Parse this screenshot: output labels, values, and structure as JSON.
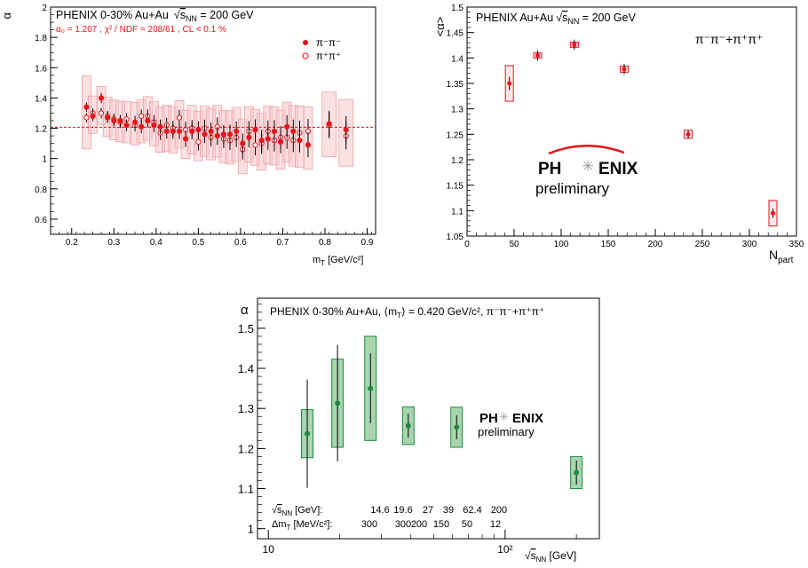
{
  "colors": {
    "red": "#e8141c",
    "green": "#1e8a3e",
    "green_fill": "#a8d5b0",
    "red_fill": "#f7c9cb"
  },
  "chart_data": [
    {
      "type": "scatter",
      "title": "PHENIX 0-30%  Au+Au",
      "sqrt_label": "s",
      "sqrt_sub": "NN",
      "energy_text": " = 200 GeV",
      "fit_text": "α₀ = 1.207  ,  χ² / NDF = 208/61 , CL < 0.1 %",
      "ylabel": "α",
      "xlabel": "m",
      "xlabel_sub": "T",
      "xlabel_unit": " [GeV/c²]",
      "xlim": [
        0.15,
        0.92
      ],
      "ylim": [
        0.5,
        2.0
      ],
      "x_ticks": [
        "0.2",
        "0.3",
        "0.4",
        "0.5",
        "0.6",
        "0.7",
        "0.8",
        "0.9"
      ],
      "y_ticks": [
        "0.6",
        "0.8",
        "1",
        "1.2",
        "1.4",
        "1.6",
        "1.8",
        "2"
      ],
      "fit_value": 1.207,
      "legend": [
        {
          "label": "π⁻π⁻",
          "marker": "filled"
        },
        {
          "label": "π⁺π⁺",
          "marker": "open"
        }
      ],
      "series": [
        {
          "name": "π⁻π⁻",
          "marker": "filled",
          "x": [
            0.235,
            0.25,
            0.27,
            0.285,
            0.3,
            0.315,
            0.33,
            0.35,
            0.365,
            0.38,
            0.395,
            0.41,
            0.425,
            0.44,
            0.455,
            0.47,
            0.485,
            0.5,
            0.515,
            0.53,
            0.545,
            0.56,
            0.575,
            0.59,
            0.605,
            0.62,
            0.635,
            0.65,
            0.665,
            0.68,
            0.695,
            0.71,
            0.725,
            0.74,
            0.76,
            0.81,
            0.85
          ],
          "y": [
            1.34,
            1.28,
            1.4,
            1.27,
            1.25,
            1.25,
            1.22,
            1.24,
            1.21,
            1.25,
            1.22,
            1.21,
            1.18,
            1.18,
            1.18,
            1.13,
            1.18,
            1.19,
            1.16,
            1.18,
            1.15,
            1.16,
            1.16,
            1.18,
            1.1,
            1.14,
            1.19,
            1.12,
            1.13,
            1.18,
            1.11,
            1.21,
            1.18,
            1.12,
            1.09,
            1.23,
            1.19
          ]
        },
        {
          "name": "π⁺π⁺",
          "marker": "open",
          "x": [
            0.235,
            0.25,
            0.27,
            0.285,
            0.3,
            0.315,
            0.33,
            0.35,
            0.365,
            0.38,
            0.395,
            0.41,
            0.425,
            0.44,
            0.455,
            0.47,
            0.485,
            0.5,
            0.515,
            0.53,
            0.545,
            0.56,
            0.575,
            0.59,
            0.605,
            0.62,
            0.635,
            0.65,
            0.665,
            0.68,
            0.695,
            0.71,
            0.725,
            0.74,
            0.76,
            0.81,
            0.85
          ],
          "y": [
            1.27,
            1.3,
            1.3,
            1.28,
            1.26,
            1.24,
            1.26,
            1.22,
            1.28,
            1.28,
            1.24,
            1.17,
            1.22,
            1.2,
            1.27,
            1.19,
            1.2,
            1.11,
            1.2,
            1.14,
            1.21,
            1.13,
            1.12,
            1.14,
            1.06,
            1.18,
            1.09,
            1.1,
            1.18,
            1.12,
            1.14,
            1.14,
            1.12,
            1.17,
            1.18,
            1.22,
            1.15
          ]
        }
      ]
    },
    {
      "type": "scatter",
      "title": "PHENIX Au+Au",
      "sqrt_label": "s",
      "sqrt_sub": "NN",
      "energy_text": " = 200 GeV",
      "series_label": "π⁻π⁻+π⁺π⁺",
      "ylabel": "<α>",
      "xlabel": "N",
      "xlabel_sub": "part",
      "xlim": [
        0,
        350
      ],
      "ylim": [
        1.05,
        1.5
      ],
      "x_ticks": [
        "0",
        "50",
        "100",
        "150",
        "200",
        "250",
        "300",
        "350"
      ],
      "y_ticks": [
        "1.05",
        "1.1",
        "1.15",
        "1.2",
        "1.25",
        "1.3",
        "1.35",
        "1.4",
        "1.45",
        "1.5"
      ],
      "logo": {
        "left": "PH",
        "right": "ENIX",
        "sub": "preliminary"
      },
      "points": [
        {
          "x": 45,
          "y": 1.35,
          "stat": 0.013,
          "sys": 0.035
        },
        {
          "x": 75,
          "y": 1.405,
          "stat": 0.01,
          "sys": 0.005
        },
        {
          "x": 114,
          "y": 1.426,
          "stat": 0.01,
          "sys": 0.005
        },
        {
          "x": 167,
          "y": 1.378,
          "stat": 0.01,
          "sys": 0.006
        },
        {
          "x": 235,
          "y": 1.25,
          "stat": 0.008,
          "sys": 0.008
        },
        {
          "x": 325,
          "y": 1.095,
          "stat": 0.009,
          "sys": 0.025
        }
      ]
    },
    {
      "type": "scatter",
      "title": "PHENIX 0-30% Au+Au, ⟨m",
      "title_sub": "T",
      "title_rest": "⟩ = 0.420 GeV/c², π⁻π⁻+π⁺π⁺",
      "ylabel": "α",
      "xlabel": "s",
      "xlabel_sub": "NN",
      "xlabel_unit": " [GeV]",
      "xscale": "log",
      "xlim": [
        9,
        250
      ],
      "ylim": [
        0.975,
        1.575
      ],
      "x_ticks": [
        "10",
        "10²"
      ],
      "y_ticks": [
        "1",
        "1.1",
        "1.2",
        "1.3",
        "1.4",
        "1.5"
      ],
      "logo": {
        "left": "PH",
        "right": "ENIX",
        "sub": "preliminary"
      },
      "table": {
        "row1_label": "s",
        "row1_sub": "NN",
        "row1_unit": " [GeV]:",
        "row1_values": [
          "14.6",
          "19.6",
          "27",
          "39",
          "62.4",
          "200"
        ],
        "row2_label": "Δm",
        "row2_sub": "T",
        "row2_unit": " [MeV/c²]:",
        "row2_values": [
          "300",
          "300",
          "200",
          "150",
          "50",
          "12"
        ]
      },
      "points": [
        {
          "x": 14.6,
          "y": 1.237,
          "stat": 0.135,
          "sys": 0.06
        },
        {
          "x": 19.6,
          "y": 1.313,
          "stat": 0.145,
          "sys": 0.11
        },
        {
          "x": 27,
          "y": 1.35,
          "stat": 0.087,
          "sys": 0.13
        },
        {
          "x": 39,
          "y": 1.257,
          "stat": 0.03,
          "sys": 0.047
        },
        {
          "x": 62.4,
          "y": 1.253,
          "stat": 0.03,
          "sys": 0.05
        },
        {
          "x": 200,
          "y": 1.14,
          "stat": 0.03,
          "sys": 0.04
        }
      ]
    }
  ]
}
